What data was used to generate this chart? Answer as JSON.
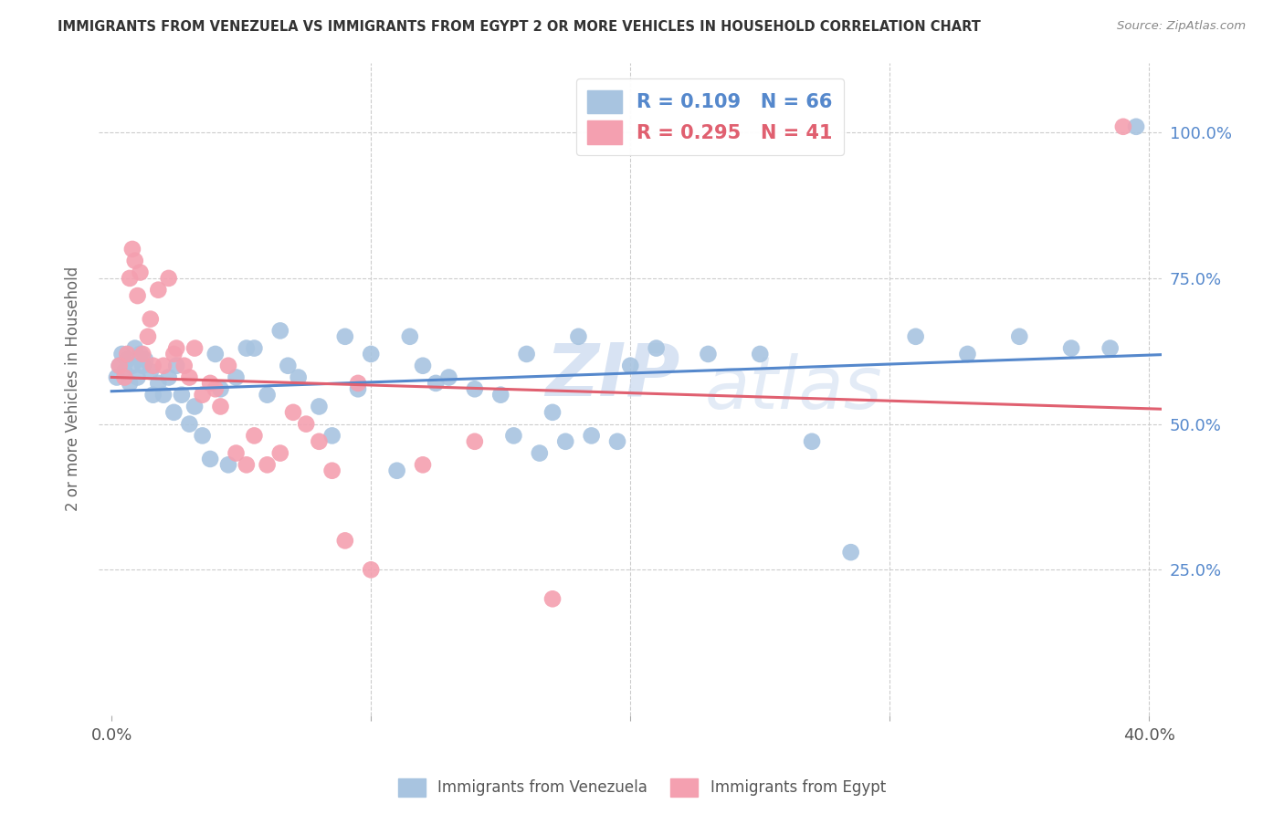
{
  "title": "IMMIGRANTS FROM VENEZUELA VS IMMIGRANTS FROM EGYPT 2 OR MORE VEHICLES IN HOUSEHOLD CORRELATION CHART",
  "source": "Source: ZipAtlas.com",
  "ylabel": "2 or more Vehicles in Household",
  "legend_blue_label": "R = 0.109   N = 66",
  "legend_pink_label": "R = 0.295   N = 41",
  "legend_blue_sub": "Immigrants from Venezuela",
  "legend_pink_sub": "Immigrants from Egypt",
  "blue_color": "#a8c4e0",
  "pink_color": "#f4a0b0",
  "trendline_blue": "#5588cc",
  "trendline_pink": "#e06070",
  "watermark_zip": "ZIP",
  "watermark_atlas": "atlas",
  "blue_x": [
    0.002,
    0.003,
    0.004,
    0.005,
    0.006,
    0.007,
    0.008,
    0.009,
    0.01,
    0.011,
    0.012,
    0.013,
    0.015,
    0.016,
    0.018,
    0.02,
    0.022,
    0.024,
    0.025,
    0.027,
    0.03,
    0.032,
    0.035,
    0.038,
    0.04,
    0.042,
    0.045,
    0.048,
    0.052,
    0.055,
    0.06,
    0.065,
    0.068,
    0.072,
    0.08,
    0.085,
    0.09,
    0.095,
    0.1,
    0.11,
    0.115,
    0.12,
    0.125,
    0.13,
    0.14,
    0.15,
    0.155,
    0.16,
    0.165,
    0.17,
    0.175,
    0.18,
    0.185,
    0.195,
    0.2,
    0.21,
    0.23,
    0.25,
    0.27,
    0.285,
    0.31,
    0.33,
    0.35,
    0.37,
    0.385,
    0.395
  ],
  "blue_y": [
    0.58,
    0.6,
    0.62,
    0.59,
    0.61,
    0.57,
    0.6,
    0.63,
    0.58,
    0.62,
    0.6,
    0.61,
    0.59,
    0.55,
    0.57,
    0.55,
    0.58,
    0.52,
    0.6,
    0.55,
    0.5,
    0.53,
    0.48,
    0.44,
    0.62,
    0.56,
    0.43,
    0.58,
    0.63,
    0.63,
    0.55,
    0.66,
    0.6,
    0.58,
    0.53,
    0.48,
    0.65,
    0.56,
    0.62,
    0.42,
    0.65,
    0.6,
    0.57,
    0.58,
    0.56,
    0.55,
    0.48,
    0.62,
    0.45,
    0.52,
    0.47,
    0.65,
    0.48,
    0.47,
    0.6,
    0.63,
    0.62,
    0.62,
    0.47,
    0.28,
    0.65,
    0.62,
    0.65,
    0.63,
    0.63,
    1.01
  ],
  "pink_x": [
    0.003,
    0.005,
    0.006,
    0.007,
    0.008,
    0.009,
    0.01,
    0.011,
    0.012,
    0.014,
    0.015,
    0.016,
    0.018,
    0.02,
    0.022,
    0.024,
    0.025,
    0.028,
    0.03,
    0.032,
    0.035,
    0.038,
    0.04,
    0.042,
    0.045,
    0.048,
    0.052,
    0.055,
    0.06,
    0.065,
    0.07,
    0.075,
    0.08,
    0.085,
    0.09,
    0.095,
    0.1,
    0.12,
    0.14,
    0.17,
    0.39
  ],
  "pink_y": [
    0.6,
    0.58,
    0.62,
    0.75,
    0.8,
    0.78,
    0.72,
    0.76,
    0.62,
    0.65,
    0.68,
    0.6,
    0.73,
    0.6,
    0.75,
    0.62,
    0.63,
    0.6,
    0.58,
    0.63,
    0.55,
    0.57,
    0.56,
    0.53,
    0.6,
    0.45,
    0.43,
    0.48,
    0.43,
    0.45,
    0.52,
    0.5,
    0.47,
    0.42,
    0.3,
    0.57,
    0.25,
    0.43,
    0.47,
    0.2,
    1.01
  ]
}
